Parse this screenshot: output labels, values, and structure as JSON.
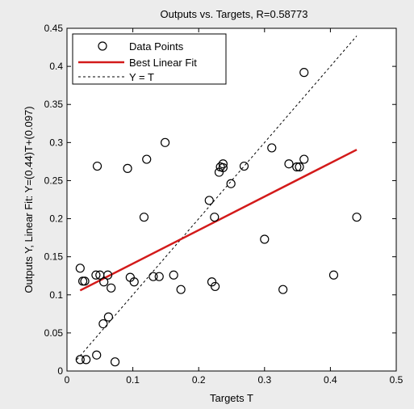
{
  "chart_data": {
    "type": "scatter",
    "title": "Outputs vs. Targets, R=0.58773",
    "xlabel": "Targets T",
    "ylabel": "Outputs Y,  Linear Fit: Y=(0.44)T+(0.097)",
    "xlim": [
      0,
      0.5
    ],
    "ylim": [
      0,
      0.45
    ],
    "xticks": [
      "0",
      "0.1",
      "0.2",
      "0.3",
      "0.4",
      "0.5"
    ],
    "yticks": [
      "0",
      "0.05",
      "0.1",
      "0.15",
      "0.2",
      "0.25",
      "0.3",
      "0.35",
      "0.4",
      "0.45"
    ],
    "grid": false,
    "legend_position": "top-left",
    "legend": [
      "Data Points",
      "Best Linear Fit",
      "Y = T"
    ],
    "colors": {
      "fit": "#d31a1a",
      "identity": "#000000",
      "points": "#000000"
    },
    "fit": {
      "slope": 0.44,
      "intercept": 0.097,
      "x_range": [
        0.02,
        0.44
      ]
    },
    "identity": {
      "x_range": [
        0.015,
        0.44
      ]
    },
    "points": [
      [
        0.02,
        0.135
      ],
      [
        0.024,
        0.118
      ],
      [
        0.027,
        0.118
      ],
      [
        0.044,
        0.126
      ],
      [
        0.05,
        0.126
      ],
      [
        0.056,
        0.117
      ],
      [
        0.062,
        0.126
      ],
      [
        0.067,
        0.109
      ],
      [
        0.096,
        0.123
      ],
      [
        0.102,
        0.117
      ],
      [
        0.131,
        0.124
      ],
      [
        0.14,
        0.124
      ],
      [
        0.162,
        0.126
      ],
      [
        0.173,
        0.107
      ],
      [
        0.22,
        0.117
      ],
      [
        0.225,
        0.111
      ],
      [
        0.046,
        0.269
      ],
      [
        0.092,
        0.266
      ],
      [
        0.121,
        0.278
      ],
      [
        0.117,
        0.202
      ],
      [
        0.149,
        0.3
      ],
      [
        0.216,
        0.224
      ],
      [
        0.224,
        0.202
      ],
      [
        0.231,
        0.261
      ],
      [
        0.233,
        0.268
      ],
      [
        0.237,
        0.272
      ],
      [
        0.237,
        0.267
      ],
      [
        0.249,
        0.246
      ],
      [
        0.269,
        0.269
      ],
      [
        0.311,
        0.293
      ],
      [
        0.3,
        0.173
      ],
      [
        0.328,
        0.107
      ],
      [
        0.337,
        0.272
      ],
      [
        0.349,
        0.268
      ],
      [
        0.353,
        0.268
      ],
      [
        0.36,
        0.278
      ],
      [
        0.36,
        0.392
      ],
      [
        0.405,
        0.126
      ],
      [
        0.44,
        0.202
      ],
      [
        0.02,
        0.015
      ],
      [
        0.029,
        0.015
      ],
      [
        0.045,
        0.021
      ],
      [
        0.055,
        0.062
      ],
      [
        0.063,
        0.071
      ],
      [
        0.073,
        0.012
      ]
    ]
  }
}
